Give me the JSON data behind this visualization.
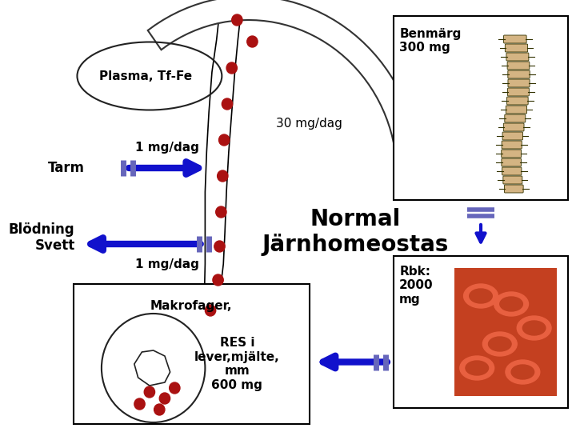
{
  "title": "Normal\nJärnhomeostas",
  "plasma_label": "Plasma, Tf-Fe",
  "dot_color": "#aa1111",
  "arrow_30mg_label": "30 mg/dag",
  "benmarg_label": "Benmärg\n300 mg",
  "tarm_label": "Tarm",
  "tarm_arrow_label": "1 mg/dag",
  "blodning_label": "Blödning\nSvett",
  "blodning_arrow_label": "1 mg/dag",
  "makrofager_label": "Makrofager,",
  "res_label": "RES i\nlever,mjälte,\nmm\n600 mg",
  "rbk_label": "Rbk:\n2000\nmg",
  "bg_color": "#ffffff",
  "blue": "#1111cc",
  "stripe_blue": "#6666bb",
  "title_fontsize": 20,
  "label_fontsize": 11,
  "small_fontsize": 10
}
